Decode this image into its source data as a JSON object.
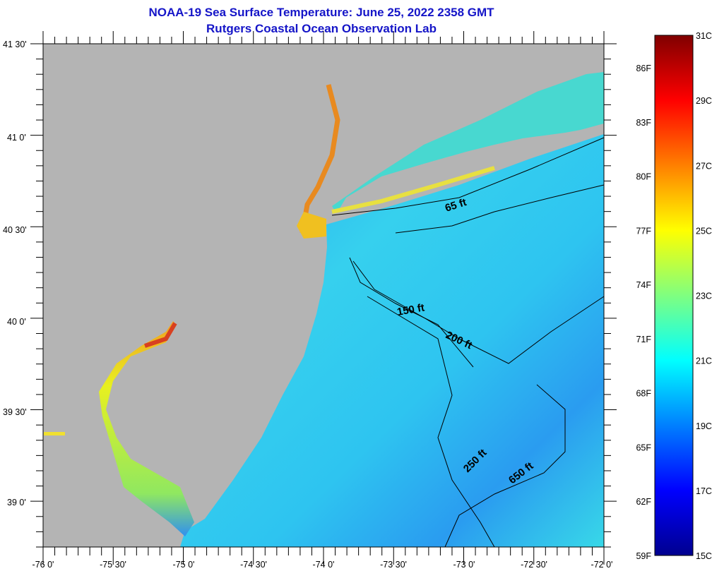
{
  "title": {
    "line1": "NOAA-19 Sea Surface Temperature:  June 25, 2022 2358 GMT",
    "line2": "Rutgers Coastal Ocean Observation Lab"
  },
  "map": {
    "lon_range": [
      -76,
      -72
    ],
    "lat_range": [
      38.75,
      41.5
    ],
    "x_labels": [
      "-76 0'",
      "-75 30'",
      "-75 0'",
      "-74 30'",
      "-74 0'",
      "-73 30'",
      "-73 0'",
      "-72 30'",
      "-72 0'"
    ],
    "y_labels": [
      "41 30'",
      "41 0'",
      "40 30'",
      "40 0'",
      "39 30'",
      "39 0'"
    ],
    "land_color": "#b4b4b4",
    "contour_labels": [
      "65 ft",
      "150 ft",
      "200 ft",
      "250 ft",
      "650 ft"
    ]
  },
  "colorbar": {
    "celsius_range": [
      15,
      31
    ],
    "fahrenheit_labels": [
      "86F",
      "83F",
      "80F",
      "77F",
      "74F",
      "71F",
      "68F",
      "65F",
      "62F",
      "59F"
    ],
    "celsius_labels": [
      "31C",
      "29C",
      "27C",
      "25C",
      "23C",
      "21C",
      "19C",
      "17C",
      "15C"
    ]
  }
}
